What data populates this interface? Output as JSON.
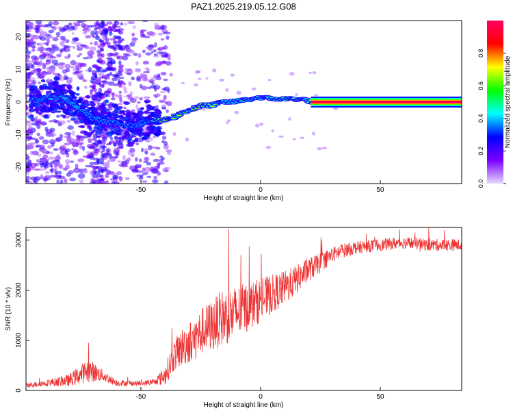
{
  "title": "PAZ1.2025.219.05.12.G08",
  "chart_data": [
    {
      "type": "heatmap",
      "xlabel": "Height of straight line (km)",
      "ylabel": "Frequency (Hz)",
      "xlim": [
        -98,
        84
      ],
      "ylim": [
        -25,
        25
      ],
      "xticks": [
        -50,
        0,
        50
      ],
      "yticks": [
        -20,
        -10,
        0,
        10,
        20
      ],
      "colorbar": {
        "label": "Normalized spectral amplitude",
        "range": [
          0,
          1
        ],
        "ticks": [
          0.0,
          0.2,
          0.4,
          0.6,
          0.8
        ],
        "colormap": [
          "#e8d8ff",
          "#7a00ff",
          "#0000ff",
          "#00ffff",
          "#00ff00",
          "#ffff00",
          "#ff0000",
          "#ff0060"
        ]
      },
      "ridge": {
        "x": [
          -94,
          -88,
          -84,
          -80,
          -76,
          -72,
          -68,
          -64,
          -60,
          -56,
          -52,
          -48,
          -44,
          -40,
          -36,
          -32,
          -28,
          -24,
          -20,
          -16,
          -12,
          -8,
          -4,
          0,
          4,
          8,
          12,
          16,
          20,
          22,
          30,
          40,
          50,
          60,
          70,
          84
        ],
        "y": [
          0.5,
          1.5,
          1.5,
          0,
          -2,
          -4,
          -5.5,
          -6,
          -6.5,
          -7,
          -7.5,
          -6,
          -5.5,
          -5.5,
          -4.5,
          -3,
          -2,
          -1,
          -1,
          0,
          0,
          0.5,
          1,
          1.5,
          1,
          1,
          1,
          1,
          0.5,
          0,
          0,
          0,
          0,
          0,
          0,
          0
        ],
        "amplitude": [
          0.3,
          0.45,
          0.5,
          0.4,
          0.45,
          0.35,
          0.4,
          0.3,
          0.3,
          0.25,
          0.3,
          0.35,
          0.9,
          0.8,
          0.7,
          0.75,
          0.8,
          0.85,
          0.7,
          0.6,
          0.5,
          0.5,
          0.55,
          0.5,
          0.6,
          0.8,
          0.7,
          0.6,
          0.5,
          0.9,
          1,
          1,
          1,
          1,
          1,
          1
        ]
      }
    },
    {
      "type": "line",
      "xlabel": "Height of straight line (km)",
      "ylabel": "SNR (10 * v/v)",
      "xlim": [
        -98,
        84
      ],
      "ylim": [
        0,
        3250
      ],
      "xticks": [
        -50,
        0,
        50
      ],
      "yticks": [
        0,
        1000,
        2000,
        3000
      ],
      "color": "#ee3333",
      "x": [
        -98,
        -90,
        -80,
        -72,
        -66,
        -60,
        -50,
        -44,
        -40,
        -36,
        -32,
        -28,
        -24,
        -20,
        -16,
        -12,
        -8,
        -4,
        0,
        4,
        8,
        12,
        16,
        20,
        25,
        30,
        35,
        40,
        50,
        60,
        70,
        84
      ],
      "y": [
        100,
        150,
        200,
        400,
        300,
        150,
        140,
        170,
        300,
        700,
        900,
        1000,
        1200,
        1300,
        1450,
        1500,
        1600,
        1700,
        1800,
        1900,
        2000,
        2100,
        2250,
        2400,
        2550,
        2700,
        2800,
        2850,
        2900,
        2950,
        2900,
        2900
      ],
      "spread": [
        60,
        80,
        150,
        300,
        150,
        80,
        60,
        80,
        250,
        400,
        500,
        550,
        600,
        650,
        700,
        700,
        650,
        600,
        550,
        500,
        450,
        400,
        350,
        300,
        250,
        200,
        180,
        160,
        150,
        150,
        150,
        150
      ]
    }
  ]
}
